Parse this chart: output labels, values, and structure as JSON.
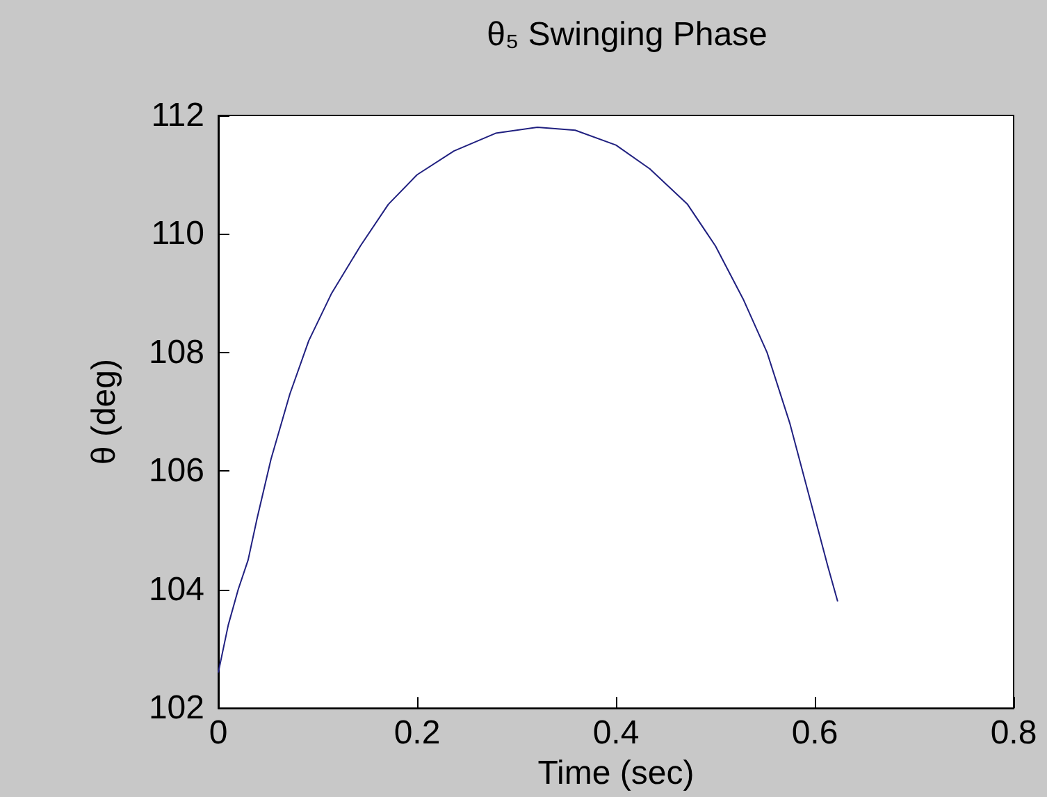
{
  "chart_data": {
    "type": "line",
    "title": "θ₅ Swinging Phase",
    "xlabel": "Time (sec)",
    "ylabel": "θ (deg)",
    "x": [
      0,
      0.01,
      0.02,
      0.03,
      0.039,
      0.053,
      0.072,
      0.091,
      0.114,
      0.143,
      0.171,
      0.2,
      0.237,
      0.279,
      0.321,
      0.359,
      0.4,
      0.434,
      0.472,
      0.5,
      0.528,
      0.552,
      0.575,
      0.594,
      0.613,
      0.623
    ],
    "series": [
      {
        "color": "#202080",
        "values": [
          102.6,
          103.4,
          104.0,
          104.5,
          105.2,
          106.2,
          107.3,
          108.2,
          109.0,
          109.8,
          110.5,
          111.0,
          111.4,
          111.7,
          111.8,
          111.75,
          111.5,
          111.1,
          110.5,
          109.8,
          108.9,
          108.0,
          106.8,
          105.6,
          104.4,
          103.8
        ]
      }
    ],
    "xlim": [
      0,
      0.8
    ],
    "xticks": [
      0,
      0.2,
      0.4,
      0.6,
      0.8
    ],
    "ylim": [
      102,
      112
    ],
    "yticks": [
      102,
      104,
      106,
      108,
      110,
      112
    ],
    "grid": false,
    "marker": "none",
    "line_style": "solid"
  }
}
